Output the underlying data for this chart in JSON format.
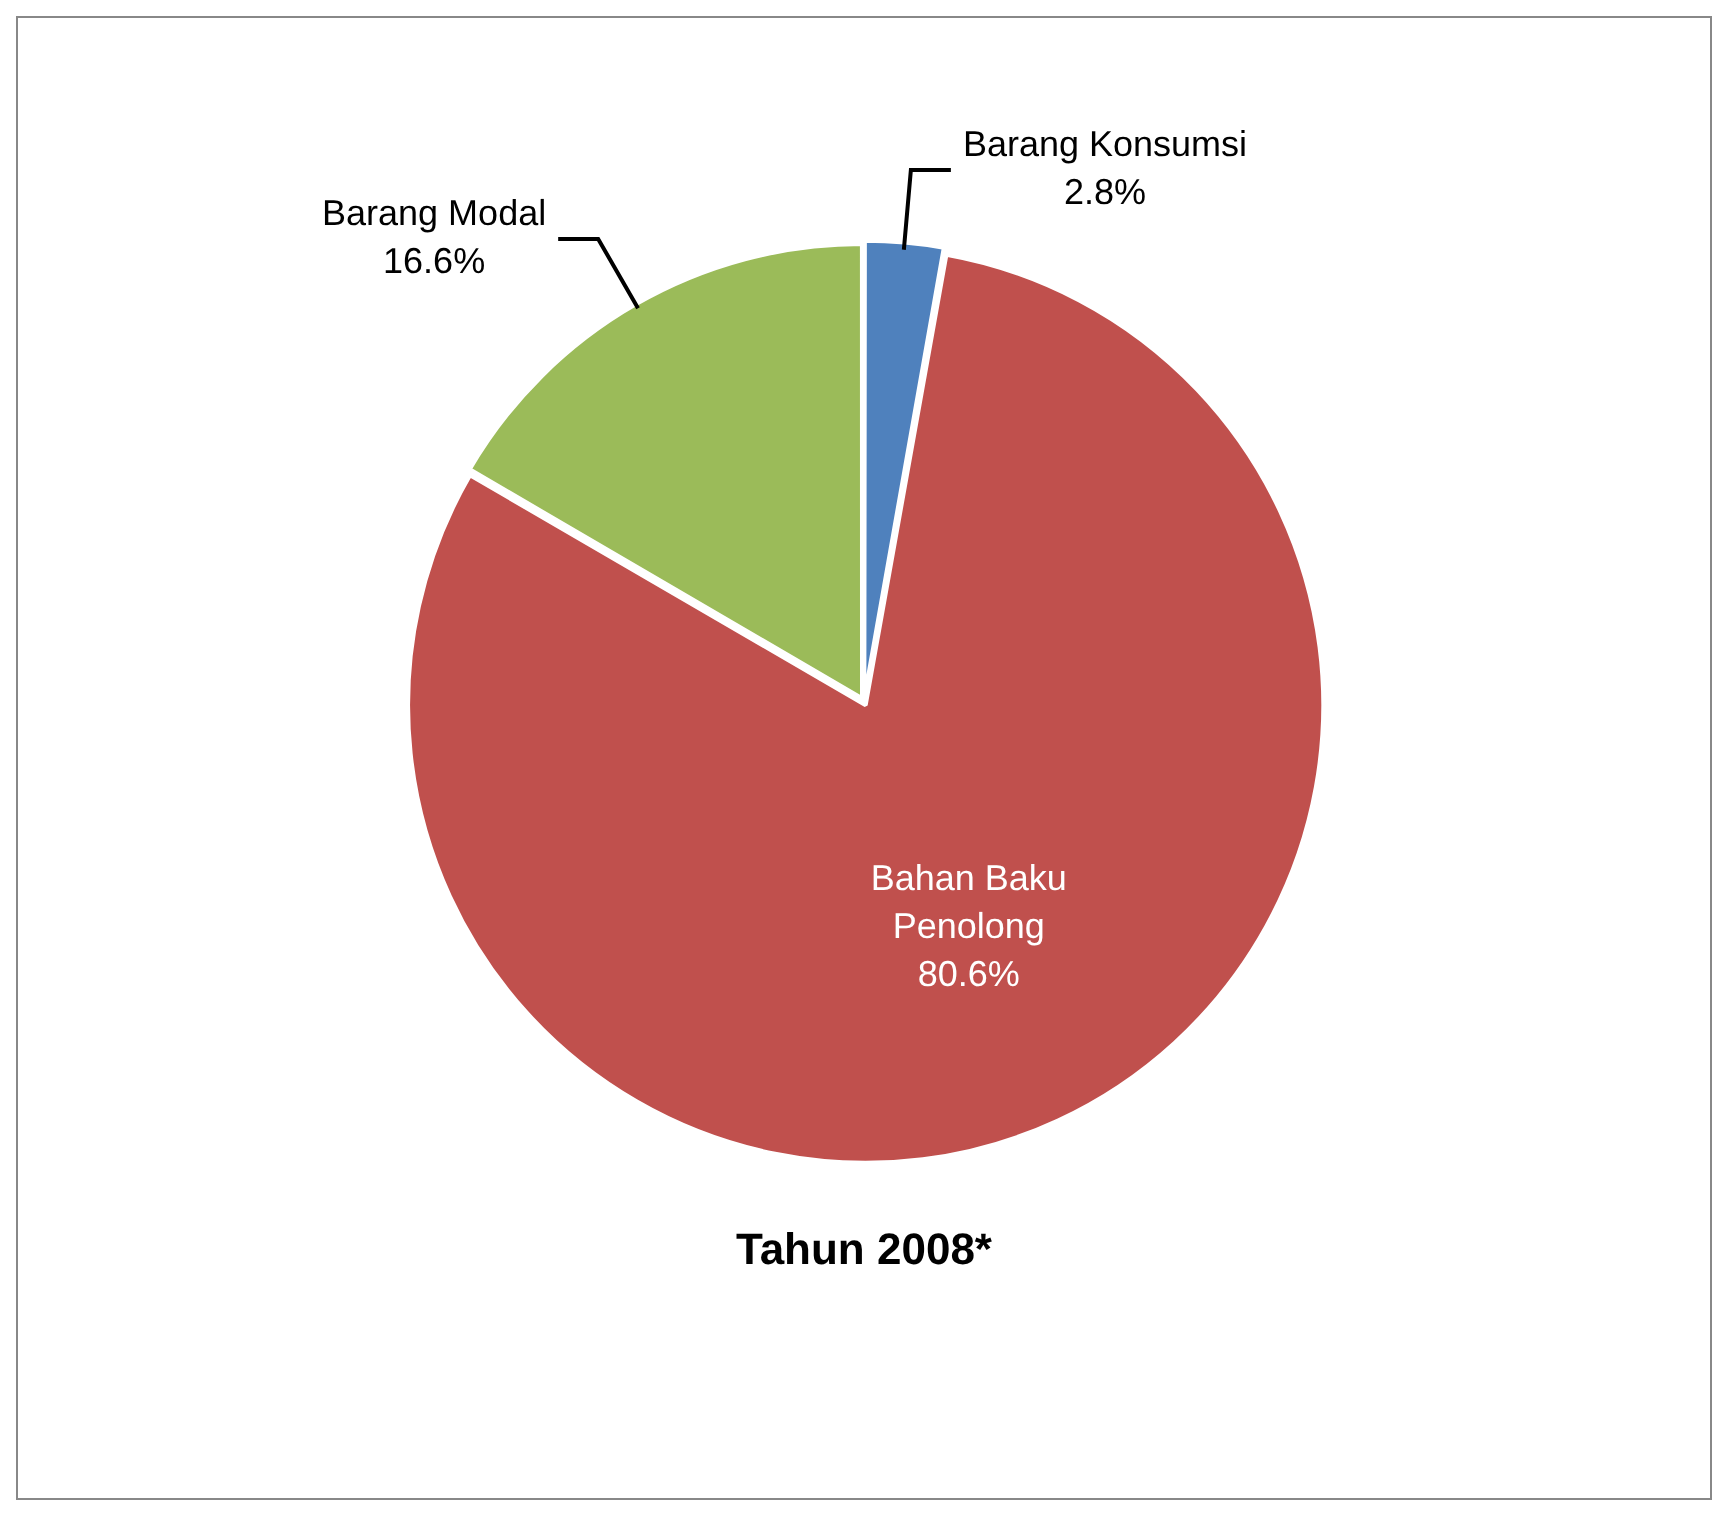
{
  "chart_data": {
    "type": "pie",
    "title": "Tahun 2008*",
    "categories": [
      "Barang Konsumsi",
      "Bahan Baku Penolong",
      "Barang Modal"
    ],
    "values": [
      2.8,
      80.6,
      16.6
    ],
    "value_labels": [
      "2.8%",
      "80.6%",
      "16.6%"
    ],
    "colors": [
      "#4f81bd",
      "#c0504d",
      "#9bbb59"
    ],
    "legend": false
  }
}
